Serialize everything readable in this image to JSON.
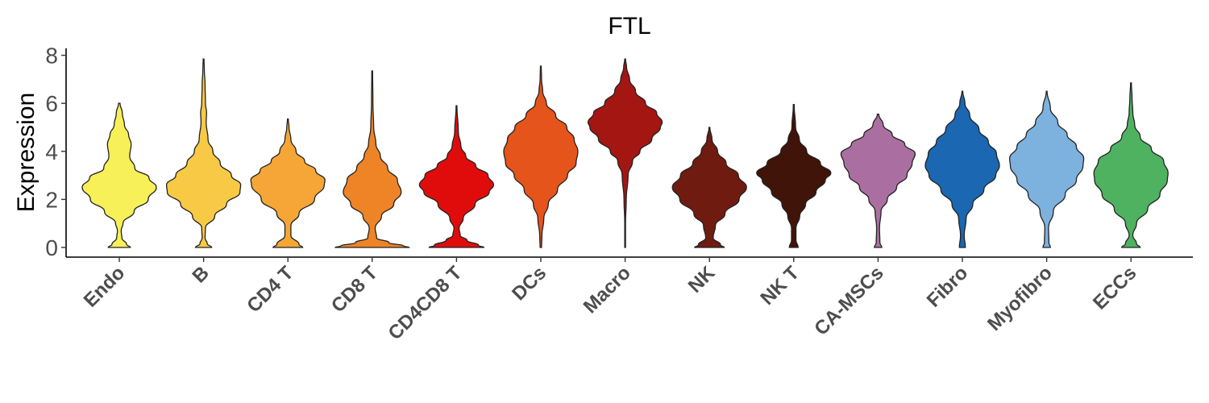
{
  "chart_data": {
    "type": "violin",
    "title": "FTL",
    "xlabel": "",
    "ylabel": "Expression",
    "ylim": [
      -0.4,
      8.3
    ],
    "yticks": [
      "0",
      "2",
      "4",
      "6",
      "8"
    ],
    "legend": "none",
    "grid": false,
    "categories": [
      {
        "name": "Endo",
        "color": "#F7F058",
        "max": 6.0,
        "profile": [
          [
            0,
            0.3
          ],
          [
            0.12,
            0.2
          ],
          [
            0.4,
            0.07
          ],
          [
            0.7,
            0.05
          ],
          [
            1.0,
            0.1
          ],
          [
            1.5,
            0.4
          ],
          [
            2.0,
            0.78
          ],
          [
            2.5,
            1.0
          ],
          [
            2.9,
            0.8
          ],
          [
            3.3,
            0.42
          ],
          [
            3.8,
            0.28
          ],
          [
            4.3,
            0.32
          ],
          [
            4.7,
            0.25
          ],
          [
            5.1,
            0.14
          ],
          [
            5.6,
            0.08
          ],
          [
            6.0,
            0.02
          ]
        ]
      },
      {
        "name": "B",
        "color": "#F8C945",
        "max": 7.85,
        "profile": [
          [
            0,
            0.22
          ],
          [
            0.15,
            0.1
          ],
          [
            0.4,
            0.04
          ],
          [
            0.8,
            0.05
          ],
          [
            1.3,
            0.3
          ],
          [
            1.8,
            0.62
          ],
          [
            2.3,
            0.98
          ],
          [
            2.6,
            1.0
          ],
          [
            3.0,
            0.75
          ],
          [
            3.5,
            0.45
          ],
          [
            4.0,
            0.25
          ],
          [
            4.5,
            0.12
          ],
          [
            5.2,
            0.07
          ],
          [
            5.6,
            0.08
          ],
          [
            6.0,
            0.05
          ],
          [
            6.8,
            0.04
          ],
          [
            7.4,
            0.02
          ],
          [
            7.85,
            0.01
          ]
        ]
      },
      {
        "name": "CD4 T",
        "color": "#F5A637",
        "max": 5.35,
        "profile": [
          [
            0,
            0.4
          ],
          [
            0.12,
            0.3
          ],
          [
            0.5,
            0.08
          ],
          [
            0.9,
            0.08
          ],
          [
            1.4,
            0.3
          ],
          [
            2.0,
            0.72
          ],
          [
            2.6,
            0.98
          ],
          [
            2.8,
            1.0
          ],
          [
            3.2,
            0.75
          ],
          [
            3.6,
            0.45
          ],
          [
            4.0,
            0.22
          ],
          [
            4.5,
            0.08
          ],
          [
            5.0,
            0.03
          ],
          [
            5.35,
            0.01
          ]
        ]
      },
      {
        "name": "CD8 T",
        "color": "#EE8426",
        "max": 7.35,
        "profile": [
          [
            0,
            1.0
          ],
          [
            0.06,
            0.85
          ],
          [
            0.2,
            0.45
          ],
          [
            0.4,
            0.12
          ],
          [
            0.8,
            0.08
          ],
          [
            1.3,
            0.25
          ],
          [
            1.8,
            0.58
          ],
          [
            2.3,
            0.78
          ],
          [
            2.8,
            0.68
          ],
          [
            3.3,
            0.42
          ],
          [
            3.8,
            0.22
          ],
          [
            4.3,
            0.1
          ],
          [
            5.0,
            0.04
          ],
          [
            6.0,
            0.02
          ],
          [
            7.35,
            0.01
          ]
        ]
      },
      {
        "name": "CD4CD8 T",
        "color": "#E00C0C",
        "max": 5.9,
        "profile": [
          [
            0,
            0.74
          ],
          [
            0.08,
            0.6
          ],
          [
            0.3,
            0.28
          ],
          [
            0.5,
            0.1
          ],
          [
            0.8,
            0.07
          ],
          [
            1.2,
            0.18
          ],
          [
            1.8,
            0.5
          ],
          [
            2.3,
            0.88
          ],
          [
            2.6,
            1.0
          ],
          [
            3.0,
            0.85
          ],
          [
            3.4,
            0.52
          ],
          [
            3.8,
            0.25
          ],
          [
            4.2,
            0.12
          ],
          [
            4.8,
            0.05
          ],
          [
            5.9,
            0.01
          ]
        ]
      },
      {
        "name": "DCs",
        "color": "#E5541A",
        "max": 7.55,
        "profile": [
          [
            0,
            0.02
          ],
          [
            0.5,
            0.03
          ],
          [
            1.2,
            0.08
          ],
          [
            1.8,
            0.2
          ],
          [
            2.4,
            0.45
          ],
          [
            3.0,
            0.72
          ],
          [
            3.5,
            0.95
          ],
          [
            4.0,
            1.0
          ],
          [
            4.5,
            0.9
          ],
          [
            5.0,
            0.7
          ],
          [
            5.5,
            0.4
          ],
          [
            6.0,
            0.15
          ],
          [
            6.5,
            0.05
          ],
          [
            7.0,
            0.02
          ],
          [
            7.55,
            0.01
          ]
        ]
      },
      {
        "name": "Macro",
        "color": "#A31612",
        "max": 7.85,
        "profile": [
          [
            0,
            0.01
          ],
          [
            1.0,
            0.01
          ],
          [
            2.0,
            0.03
          ],
          [
            3.0,
            0.08
          ],
          [
            3.6,
            0.2
          ],
          [
            4.0,
            0.4
          ],
          [
            4.5,
            0.72
          ],
          [
            5.0,
            0.95
          ],
          [
            5.2,
            1.0
          ],
          [
            5.6,
            0.85
          ],
          [
            6.0,
            0.55
          ],
          [
            6.5,
            0.28
          ],
          [
            7.0,
            0.12
          ],
          [
            7.5,
            0.04
          ],
          [
            7.85,
            0.01
          ]
        ]
      },
      {
        "name": "NK",
        "color": "#701B10",
        "max": 5.0,
        "profile": [
          [
            0,
            0.4
          ],
          [
            0.1,
            0.3
          ],
          [
            0.4,
            0.1
          ],
          [
            0.9,
            0.16
          ],
          [
            1.4,
            0.42
          ],
          [
            2.0,
            0.8
          ],
          [
            2.5,
            1.0
          ],
          [
            3.0,
            0.78
          ],
          [
            3.5,
            0.45
          ],
          [
            4.0,
            0.22
          ],
          [
            4.5,
            0.07
          ],
          [
            5.0,
            0.01
          ]
        ]
      },
      {
        "name": "NK T",
        "color": "#401408",
        "max": 5.95,
        "profile": [
          [
            0,
            0.12
          ],
          [
            0.3,
            0.06
          ],
          [
            0.8,
            0.06
          ],
          [
            1.3,
            0.16
          ],
          [
            1.8,
            0.32
          ],
          [
            2.3,
            0.6
          ],
          [
            2.8,
            0.85
          ],
          [
            3.1,
            1.0
          ],
          [
            3.5,
            0.72
          ],
          [
            4.0,
            0.35
          ],
          [
            4.5,
            0.15
          ],
          [
            5.0,
            0.05
          ],
          [
            5.95,
            0.01
          ]
        ]
      },
      {
        "name": "CA-MSCs",
        "color": "#AA6FA0",
        "max": 5.55,
        "profile": [
          [
            0,
            0.1
          ],
          [
            0.2,
            0.05
          ],
          [
            0.8,
            0.04
          ],
          [
            1.5,
            0.08
          ],
          [
            2.0,
            0.25
          ],
          [
            2.5,
            0.5
          ],
          [
            3.0,
            0.78
          ],
          [
            3.5,
            0.92
          ],
          [
            3.9,
            1.0
          ],
          [
            4.3,
            0.72
          ],
          [
            4.7,
            0.38
          ],
          [
            5.1,
            0.14
          ],
          [
            5.55,
            0.02
          ]
        ]
      },
      {
        "name": "Fibro",
        "color": "#1B67B1",
        "max": 6.5,
        "profile": [
          [
            0,
            0.08
          ],
          [
            0.5,
            0.05
          ],
          [
            1.2,
            0.1
          ],
          [
            1.8,
            0.28
          ],
          [
            2.4,
            0.58
          ],
          [
            3.0,
            0.9
          ],
          [
            3.4,
            1.0
          ],
          [
            3.9,
            0.92
          ],
          [
            4.4,
            0.7
          ],
          [
            4.9,
            0.45
          ],
          [
            5.5,
            0.2
          ],
          [
            6.0,
            0.07
          ],
          [
            6.5,
            0.01
          ]
        ]
      },
      {
        "name": "Myofibro",
        "color": "#7DB1DE",
        "max": 6.5,
        "profile": [
          [
            0,
            0.1
          ],
          [
            0.2,
            0.06
          ],
          [
            0.8,
            0.05
          ],
          [
            1.5,
            0.18
          ],
          [
            2.2,
            0.5
          ],
          [
            2.8,
            0.8
          ],
          [
            3.4,
            0.98
          ],
          [
            3.7,
            1.0
          ],
          [
            4.2,
            0.8
          ],
          [
            4.7,
            0.55
          ],
          [
            5.2,
            0.3
          ],
          [
            5.8,
            0.1
          ],
          [
            6.5,
            0.01
          ]
        ]
      },
      {
        "name": "ECCs",
        "color": "#4EB261",
        "max": 6.85,
        "profile": [
          [
            0,
            0.25
          ],
          [
            0.15,
            0.15
          ],
          [
            0.5,
            0.05
          ],
          [
            1.0,
            0.15
          ],
          [
            1.6,
            0.45
          ],
          [
            2.2,
            0.78
          ],
          [
            2.8,
            0.98
          ],
          [
            3.1,
            1.0
          ],
          [
            3.6,
            0.88
          ],
          [
            4.1,
            0.55
          ],
          [
            4.6,
            0.25
          ],
          [
            5.1,
            0.1
          ],
          [
            5.6,
            0.05
          ],
          [
            6.2,
            0.03
          ],
          [
            6.85,
            0.01
          ]
        ]
      }
    ]
  }
}
